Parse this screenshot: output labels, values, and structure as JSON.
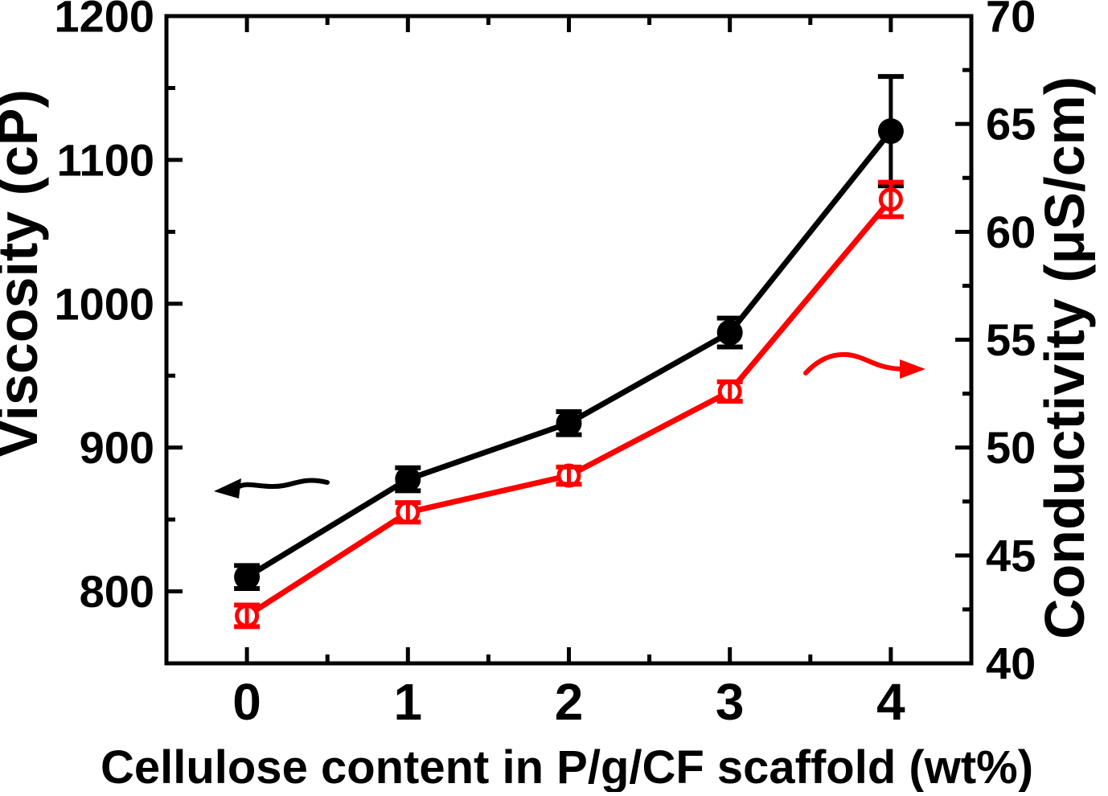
{
  "figure": {
    "background": "#ffffff",
    "kind": "dual-axis line chart with error bars"
  },
  "chart_data": {
    "type": "line",
    "title": "",
    "xlabel": "Cellulose content in P/g/CF scaffold (wt%)",
    "x": [
      0,
      1,
      2,
      3,
      4
    ],
    "x_ticks": [
      0,
      1,
      2,
      3,
      4
    ],
    "x_tick_labels": [
      "0",
      "1",
      "2",
      "3",
      "4"
    ],
    "x_minor_step": 0.5,
    "xlim": [
      -0.5,
      4.5
    ],
    "grid": false,
    "legend": "none",
    "left_axis": {
      "label": "Viscosity (cP)",
      "ticks": [
        800,
        900,
        1000,
        1100,
        1200
      ],
      "tick_labels": [
        "800",
        "900",
        "1000",
        "1100",
        "1200"
      ],
      "minor_step": 50,
      "lim": [
        750,
        1200
      ],
      "color": "#000000"
    },
    "right_axis": {
      "label": "Conductivity (μS/cm)",
      "ticks": [
        40,
        45,
        50,
        55,
        60,
        65,
        70
      ],
      "tick_labels": [
        "40",
        "45",
        "50",
        "55",
        "60",
        "65",
        "70"
      ],
      "minor_step": 2.5,
      "lim": [
        40,
        70
      ],
      "color": "#000000"
    },
    "series": [
      {
        "name": "Viscosity",
        "axis": "left",
        "color": "#000000",
        "marker": "filled-circle",
        "values": [
          810,
          878,
          917,
          980,
          1120
        ],
        "errors": [
          8,
          8,
          8,
          10,
          38
        ]
      },
      {
        "name": "Conductivity",
        "axis": "right",
        "color": "#ff0000",
        "marker": "open-circle",
        "values": [
          42.2,
          47.0,
          48.7,
          52.6,
          61.5
        ],
        "errors": [
          0.5,
          0.45,
          0.4,
          0.45,
          0.8
        ]
      }
    ],
    "annotations": [
      {
        "type": "arrow",
        "direction": "left",
        "color": "#000000",
        "refers_to": "Viscosity (left axis)"
      },
      {
        "type": "arrow",
        "direction": "right",
        "color": "#ff0000",
        "refers_to": "Conductivity (right axis)"
      }
    ]
  }
}
